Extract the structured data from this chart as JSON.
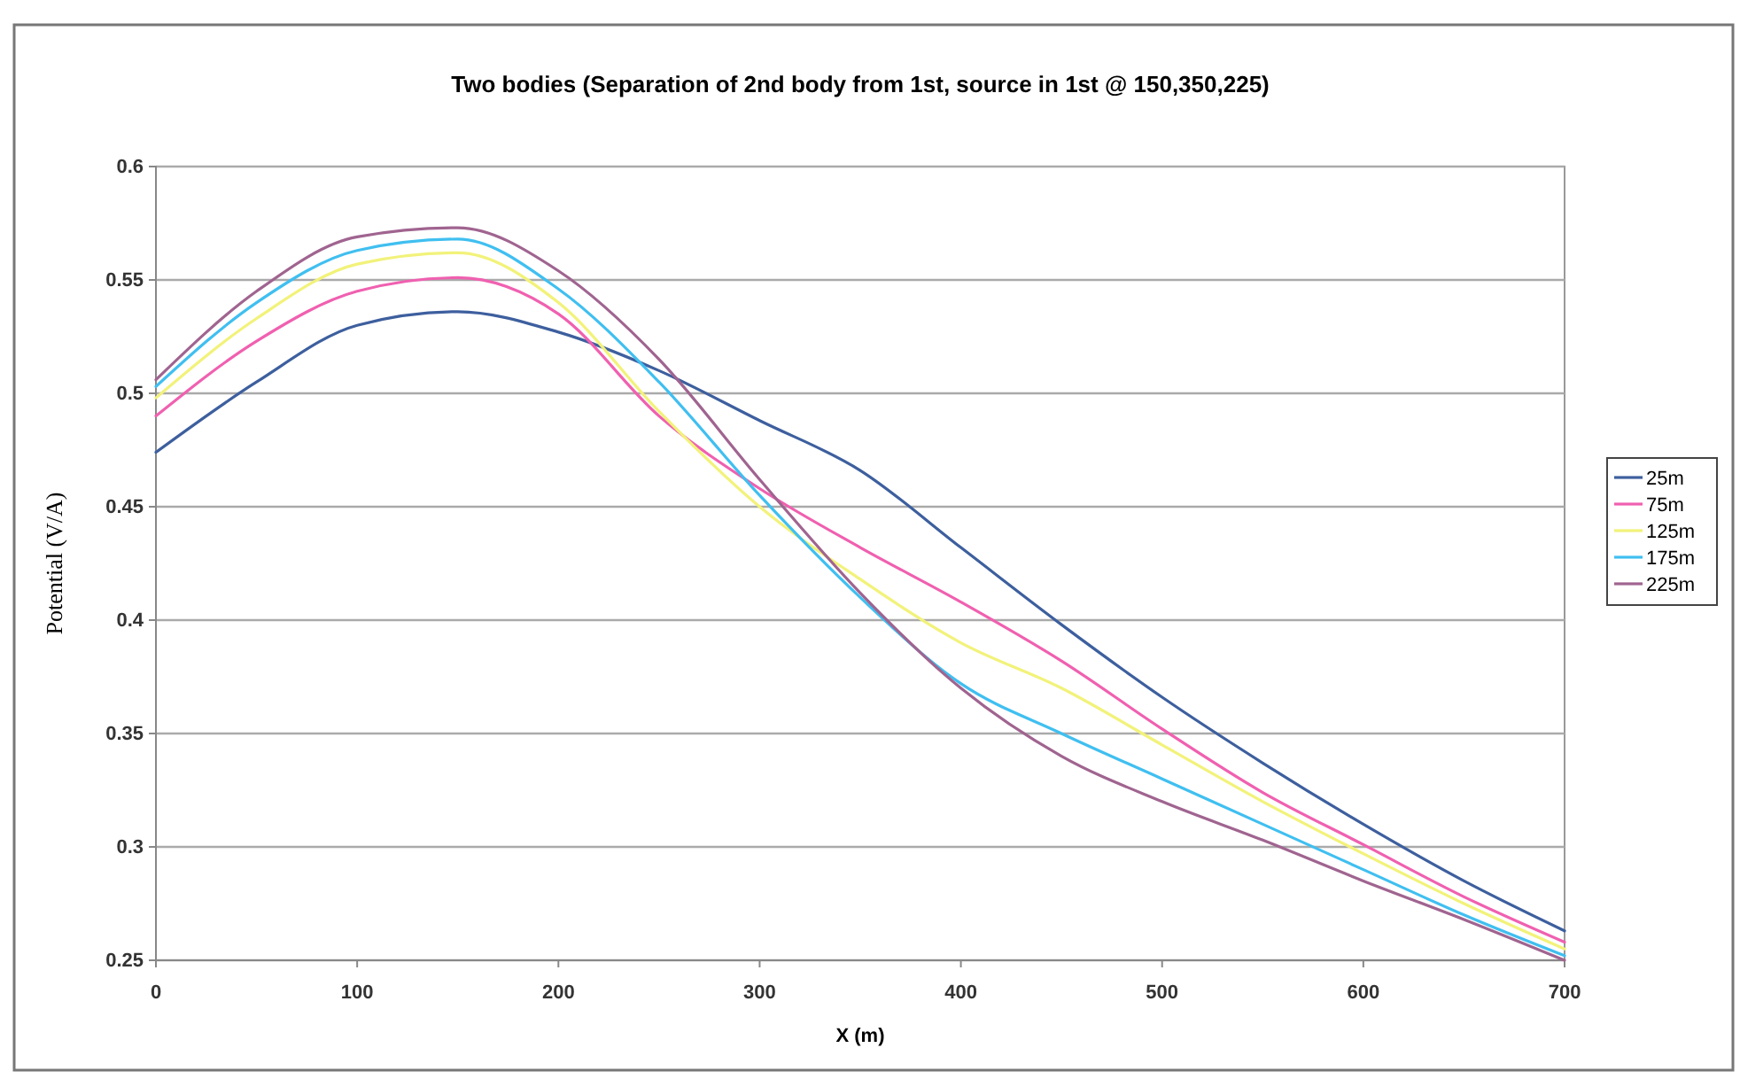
{
  "chart_data": {
    "type": "line",
    "title": "Two bodies (Separation of 2nd body from 1st, source in 1st @ 150,350,225)",
    "xlabel": "X (m)",
    "ylabel": "Potential (V/A)",
    "x": [
      0,
      50,
      100,
      150,
      200,
      250,
      300,
      350,
      400,
      450,
      500,
      550,
      600,
      650,
      700
    ],
    "series": [
      {
        "name": "25m",
        "color": "#3d5f9e",
        "values": [
          0.474,
          0.505,
          0.53,
          0.536,
          0.527,
          0.51,
          0.488,
          0.466,
          0.432,
          0.398,
          0.366,
          0.337,
          0.31,
          0.285,
          0.263
        ]
      },
      {
        "name": "75m",
        "color": "#f060b0",
        "values": [
          0.49,
          0.523,
          0.545,
          0.551,
          0.535,
          0.49,
          0.458,
          0.432,
          0.408,
          0.382,
          0.352,
          0.324,
          0.301,
          0.278,
          0.258
        ]
      },
      {
        "name": "125m",
        "color": "#f2f27a",
        "values": [
          0.498,
          0.533,
          0.557,
          0.562,
          0.54,
          0.492,
          0.45,
          0.418,
          0.39,
          0.37,
          0.345,
          0.32,
          0.297,
          0.275,
          0.255
        ]
      },
      {
        "name": "175m",
        "color": "#40bff0",
        "values": [
          0.503,
          0.54,
          0.563,
          0.568,
          0.546,
          0.505,
          0.455,
          0.41,
          0.372,
          0.35,
          0.33,
          0.31,
          0.29,
          0.27,
          0.252
        ]
      },
      {
        "name": "225m",
        "color": "#a06490",
        "values": [
          0.506,
          0.545,
          0.569,
          0.573,
          0.554,
          0.515,
          0.462,
          0.412,
          0.37,
          0.34,
          0.32,
          0.303,
          0.285,
          0.268,
          0.25
        ]
      }
    ],
    "xlim": [
      0,
      700
    ],
    "xticks": [
      0,
      100,
      200,
      300,
      400,
      500,
      600,
      700
    ],
    "ylim": [
      0.25,
      0.6
    ],
    "yticks": [
      0.25,
      0.3,
      0.35,
      0.4,
      0.45,
      0.5,
      0.55,
      0.6
    ],
    "grid": "y",
    "legend": "right",
    "marker": "none",
    "line_style": "solid"
  }
}
